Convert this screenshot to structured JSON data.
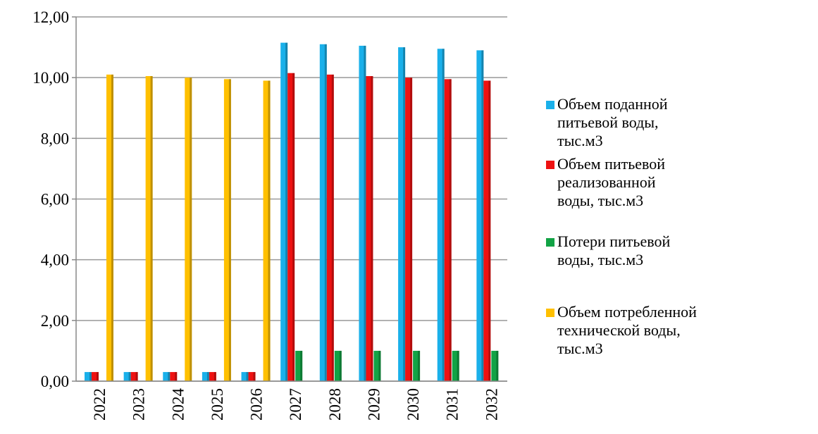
{
  "chart_data": {
    "type": "bar",
    "categories": [
      "2022",
      "2023",
      "2024",
      "2025",
      "2026",
      "2027",
      "2028",
      "2029",
      "2030",
      "2031",
      "2032"
    ],
    "series": [
      {
        "name": "Объем поданной питьевой воды, тыс.м3",
        "color": "#1ab0ea",
        "values": [
          0.3,
          0.3,
          0.3,
          0.3,
          0.3,
          11.15,
          11.1,
          11.05,
          11.0,
          10.95,
          10.9
        ]
      },
      {
        "name": "Объем питьевой реализованной воды, тыс.м3",
        "color": "#ee1111",
        "values": [
          0.3,
          0.3,
          0.3,
          0.3,
          0.3,
          10.15,
          10.1,
          10.05,
          10.0,
          9.95,
          9.9
        ]
      },
      {
        "name": "Потери питьевой воды, тыс.м3",
        "color": "#12a345",
        "values": [
          0,
          0,
          0,
          0,
          0,
          1.0,
          1.0,
          1.0,
          1.0,
          1.0,
          1.0
        ]
      },
      {
        "name": "Объем потребленной технической воды, тыс.м3",
        "color": "#ffc000",
        "values": [
          10.1,
          10.05,
          10.0,
          9.95,
          9.9,
          0,
          0,
          0,
          0,
          0,
          0
        ]
      }
    ],
    "ylim": [
      0,
      12
    ],
    "yticks": [
      {
        "value": 0,
        "label": "0,00"
      },
      {
        "value": 2,
        "label": "2,00"
      },
      {
        "value": 4,
        "label": "4,00"
      },
      {
        "value": 6,
        "label": "6,00"
      },
      {
        "value": 8,
        "label": "8,00"
      },
      {
        "value": 10,
        "label": "10,00"
      },
      {
        "value": 12,
        "label": "12,00"
      }
    ],
    "grid": true
  }
}
